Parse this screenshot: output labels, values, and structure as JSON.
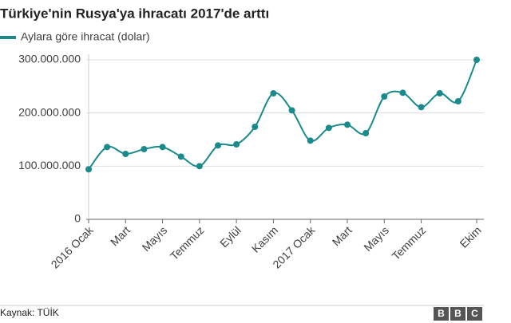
{
  "chart_data": {
    "type": "line",
    "title": "Türkiye'nin Rusya'ya ihracatı 2017'de arttı",
    "categories": [
      "2016 Ocak",
      null,
      "Mart",
      null,
      "Mayıs",
      null,
      "Temmuz",
      null,
      "Eylül",
      null,
      "Kasım",
      null,
      "2017 Ocak",
      null,
      "Mart",
      null,
      "Mayıs",
      null,
      "Temmuz",
      null,
      null,
      "Ekim"
    ],
    "series": [
      {
        "name": "Aylara göre ihracat (dolar)",
        "color": "#1a8a8a",
        "values": [
          94000000,
          136000000,
          123000000,
          132000000,
          136000000,
          118000000,
          100000000,
          139000000,
          141000000,
          174000000,
          237000000,
          205000000,
          148000000,
          172000000,
          178000000,
          162000000,
          231000000,
          238000000,
          211000000,
          237000000,
          222000000,
          300000000
        ]
      }
    ],
    "ylim": [
      0,
      300000000
    ],
    "yticks": [
      0,
      {
        "value": 100000000,
        "label": "100.000.000"
      },
      {
        "value": 200000000,
        "label": "200.000.000"
      },
      {
        "value": 300000000,
        "label": "300.000.000"
      }
    ],
    "grid": true,
    "legend": "top-left",
    "source": "Kaynak: TÜİK",
    "logo": "BBC"
  }
}
